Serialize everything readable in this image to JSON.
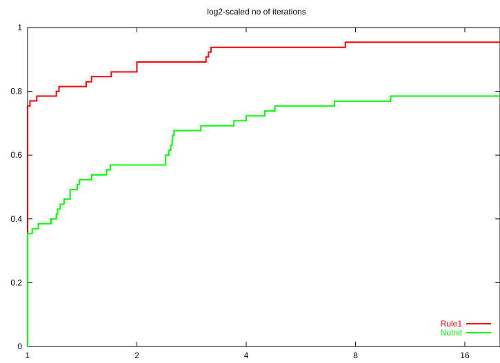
{
  "chart_data": {
    "type": "line",
    "title": "log2-scaled no of iterations",
    "xscale": "log2",
    "xlim": [
      1,
      20
    ],
    "ylim": [
      0,
      1
    ],
    "x_ticks": [
      1,
      2,
      4,
      8,
      16
    ],
    "x_tick_labels": [
      "1",
      "2",
      "4",
      "8",
      "16"
    ],
    "y_ticks": [
      0,
      0.2,
      0.4,
      0.6,
      0.8,
      1
    ],
    "y_tick_labels": [
      "0",
      "0.2",
      "0.4",
      "0.6",
      "0.8",
      "1"
    ],
    "grid": false,
    "legend": "bottom-right",
    "series": [
      {
        "name": "Rule1",
        "color": "#ff0000",
        "points": [
          [
            1,
            0.352
          ],
          [
            1,
            0.754
          ],
          [
            1.015,
            0.754
          ],
          [
            1.015,
            0.77
          ],
          [
            1.06,
            0.77
          ],
          [
            1.06,
            0.785
          ],
          [
            1.2,
            0.785
          ],
          [
            1.2,
            0.8
          ],
          [
            1.22,
            0.8
          ],
          [
            1.22,
            0.815
          ],
          [
            1.45,
            0.815
          ],
          [
            1.45,
            0.83
          ],
          [
            1.5,
            0.83
          ],
          [
            1.5,
            0.846
          ],
          [
            1.7,
            0.846
          ],
          [
            1.7,
            0.861
          ],
          [
            2,
            0.861
          ],
          [
            2,
            0.892
          ],
          [
            3.1,
            0.892
          ],
          [
            3.1,
            0.908
          ],
          [
            3.15,
            0.908
          ],
          [
            3.15,
            0.923
          ],
          [
            3.2,
            0.923
          ],
          [
            3.2,
            0.938
          ],
          [
            7.5,
            0.938
          ],
          [
            7.5,
            0.954
          ],
          [
            20,
            0.954
          ]
        ]
      },
      {
        "name": "NoInit",
        "color": "#00ff00",
        "points": [
          [
            1,
            0
          ],
          [
            1,
            0.354
          ],
          [
            1.03,
            0.354
          ],
          [
            1.03,
            0.369
          ],
          [
            1.07,
            0.369
          ],
          [
            1.07,
            0.385
          ],
          [
            1.16,
            0.385
          ],
          [
            1.16,
            0.4
          ],
          [
            1.2,
            0.4
          ],
          [
            1.2,
            0.415
          ],
          [
            1.21,
            0.415
          ],
          [
            1.21,
            0.431
          ],
          [
            1.23,
            0.431
          ],
          [
            1.23,
            0.446
          ],
          [
            1.26,
            0.446
          ],
          [
            1.26,
            0.462
          ],
          [
            1.31,
            0.462
          ],
          [
            1.31,
            0.492
          ],
          [
            1.37,
            0.492
          ],
          [
            1.37,
            0.508
          ],
          [
            1.39,
            0.508
          ],
          [
            1.39,
            0.523
          ],
          [
            1.5,
            0.523
          ],
          [
            1.5,
            0.538
          ],
          [
            1.65,
            0.538
          ],
          [
            1.65,
            0.554
          ],
          [
            1.69,
            0.554
          ],
          [
            1.69,
            0.569
          ],
          [
            2.4,
            0.569
          ],
          [
            2.4,
            0.6
          ],
          [
            2.45,
            0.6
          ],
          [
            2.45,
            0.615
          ],
          [
            2.48,
            0.615
          ],
          [
            2.48,
            0.631
          ],
          [
            2.5,
            0.631
          ],
          [
            2.5,
            0.646
          ],
          [
            2.51,
            0.646
          ],
          [
            2.51,
            0.662
          ],
          [
            2.53,
            0.662
          ],
          [
            2.53,
            0.677
          ],
          [
            3.0,
            0.677
          ],
          [
            3.0,
            0.692
          ],
          [
            3.7,
            0.692
          ],
          [
            3.7,
            0.708
          ],
          [
            4.0,
            0.708
          ],
          [
            4.0,
            0.723
          ],
          [
            4.5,
            0.723
          ],
          [
            4.5,
            0.738
          ],
          [
            4.8,
            0.738
          ],
          [
            4.8,
            0.754
          ],
          [
            7.0,
            0.754
          ],
          [
            7.0,
            0.769
          ],
          [
            10.0,
            0.769
          ],
          [
            10.0,
            0.785
          ],
          [
            20,
            0.785
          ]
        ]
      }
    ]
  }
}
